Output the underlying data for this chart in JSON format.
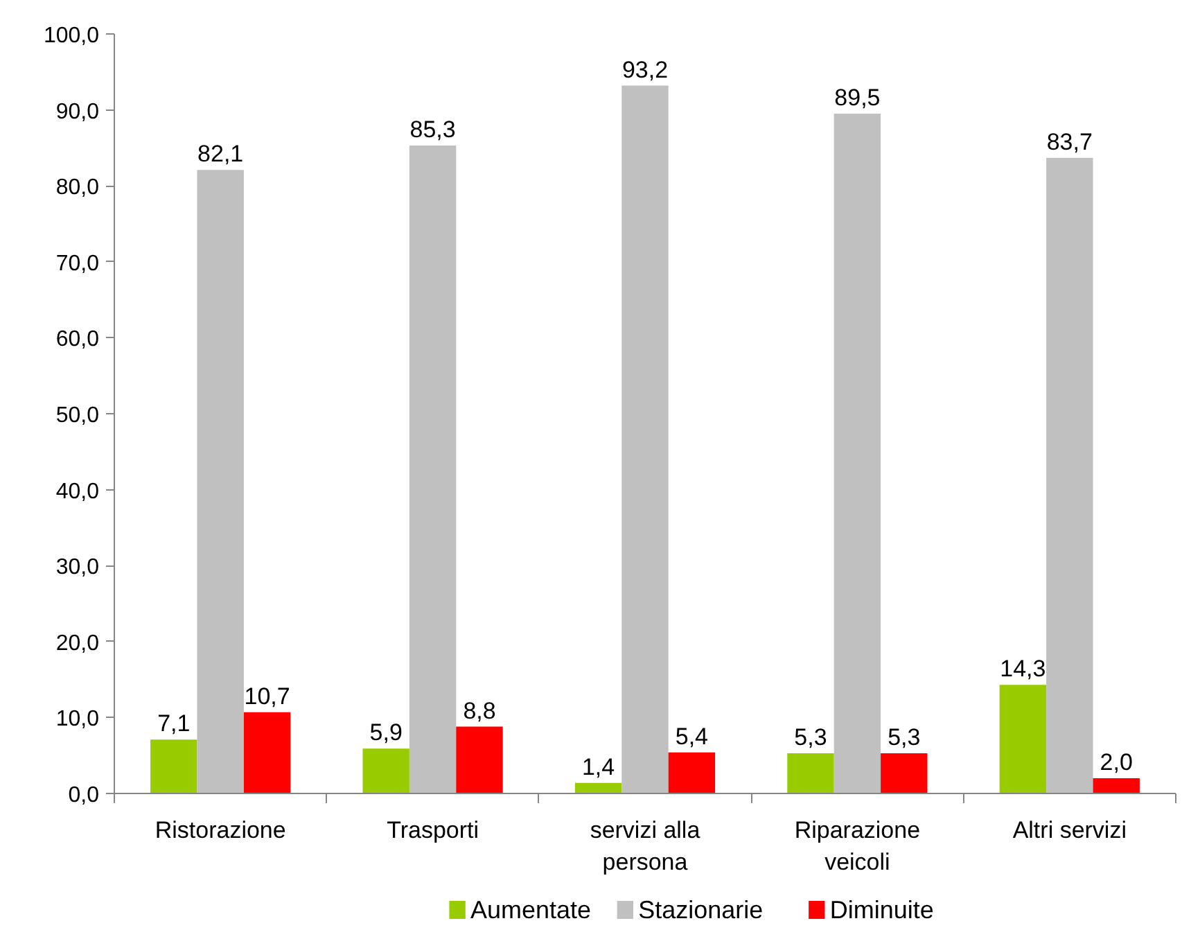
{
  "chart_data": {
    "type": "bar",
    "categories": [
      "Ristorazione",
      "Trasporti",
      "servizi alla persona",
      "Riparazione veicoli",
      "Altri servizi"
    ],
    "series": [
      {
        "name": "Aumentate",
        "color": "#99cc00",
        "values": [
          7.1,
          5.9,
          1.4,
          5.3,
          14.3
        ],
        "value_labels": [
          "7,1",
          "5,9",
          "1,4",
          "5,3",
          "14,3"
        ]
      },
      {
        "name": "Stazionarie",
        "color": "#c0c0c0",
        "values": [
          82.1,
          85.3,
          93.2,
          89.5,
          83.7
        ],
        "value_labels": [
          "82,1",
          "85,3",
          "93,2",
          "89,5",
          "83,7"
        ]
      },
      {
        "name": "Diminuite",
        "color": "#ff0000",
        "values": [
          10.7,
          8.8,
          5.4,
          5.3,
          2.0
        ],
        "value_labels": [
          "10,7",
          "8,8",
          "5,4",
          "5,3",
          "2,0"
        ]
      }
    ],
    "ylim": [
      0,
      100
    ],
    "yticks": [
      {
        "value": 0,
        "label": "0,0"
      },
      {
        "value": 10,
        "label": "10,0"
      },
      {
        "value": 20,
        "label": "20,0"
      },
      {
        "value": 30,
        "label": "30,0"
      },
      {
        "value": 40,
        "label": "40,0"
      },
      {
        "value": 50,
        "label": "50,0"
      },
      {
        "value": 60,
        "label": "60,0"
      },
      {
        "value": 70,
        "label": "70,0"
      },
      {
        "value": 80,
        "label": "80,0"
      },
      {
        "value": 90,
        "label": "90,0"
      },
      {
        "value": 100,
        "label": "100,0"
      }
    ],
    "legend": "bottom",
    "grid": false
  }
}
